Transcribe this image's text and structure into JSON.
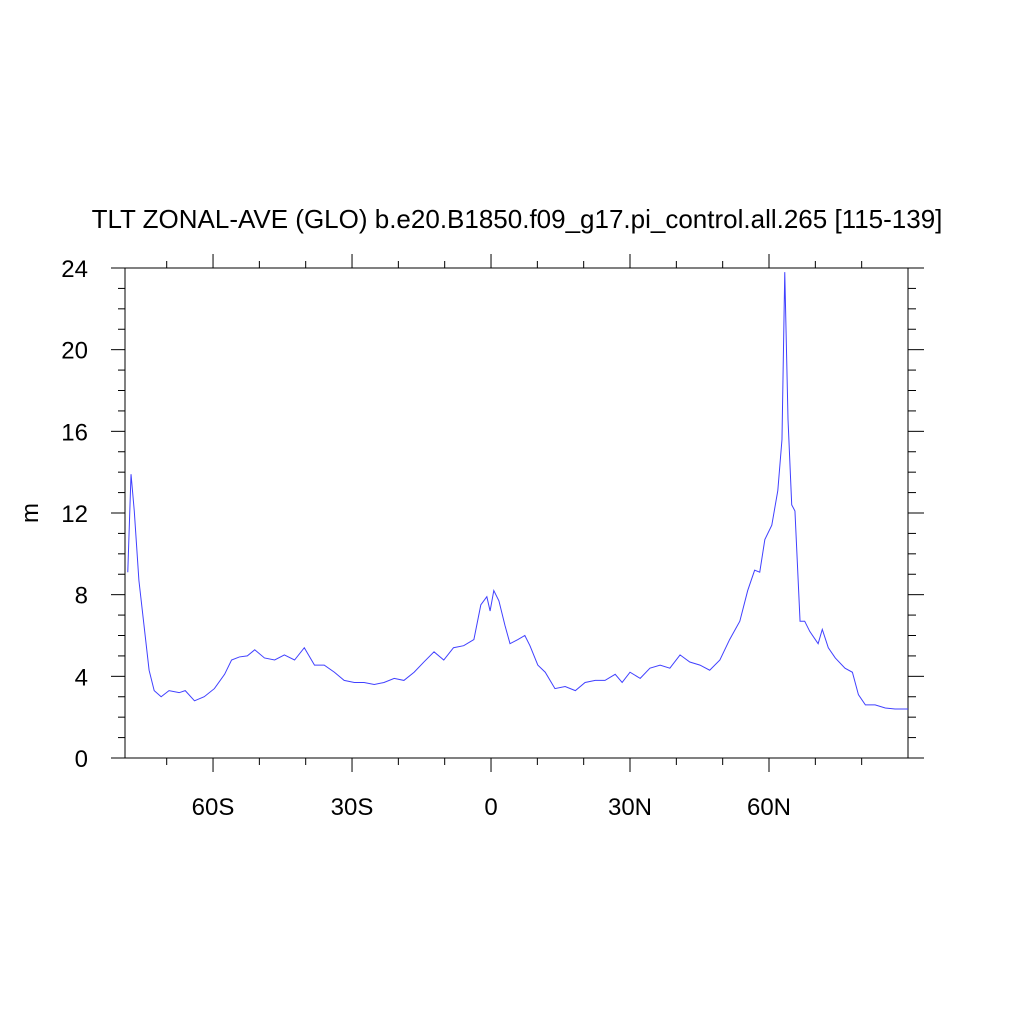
{
  "chart_data": {
    "type": "line",
    "title": "TLT ZONAL-AVE (GLO) b.e20.B1850.f09_g17.pi_control.all.265 [115-139]",
    "y_label": "m",
    "xlim": [
      -79,
      90
    ],
    "ylim": [
      0,
      24
    ],
    "xticks": [
      {
        "value": -60,
        "label": "60S"
      },
      {
        "value": -30,
        "label": "30S"
      },
      0,
      {
        "value": 30,
        "label": "30N"
      },
      {
        "value": 60,
        "label": "60N"
      }
    ],
    "xminorticks": [
      -70,
      -50,
      -40,
      -20,
      -10,
      10,
      20,
      40,
      50,
      70,
      80
    ],
    "yticks": [
      0,
      4,
      8,
      12,
      16,
      20,
      24
    ],
    "yminorticks": [
      1,
      2,
      3,
      5,
      6,
      7,
      9,
      10,
      11,
      13,
      14,
      15,
      17,
      18,
      19,
      21,
      22,
      23
    ],
    "series": [
      {
        "color": "#4040ff",
        "x": [
          -78.4,
          -77.7,
          -77,
          -76,
          -74.9,
          -73.8,
          -72.7,
          -71.2,
          -69.5,
          -67.3,
          -66,
          -64,
          -61.9,
          -59.7,
          -57.5,
          -56,
          -54.3,
          -52.6,
          -51,
          -48.9,
          -46.7,
          -44.6,
          -42.4,
          -40.3,
          -38.1,
          -36,
          -33.8,
          -31.7,
          -29.5,
          -27.4,
          -25.2,
          -23.1,
          -20.9,
          -18.8,
          -16.6,
          -14.5,
          -12.3,
          -10.2,
          -8.1,
          -5.9,
          -3.7,
          -2.2,
          -0.9,
          -0.2,
          0.6,
          1.7,
          3,
          4.1,
          5.8,
          7.3,
          8.4,
          10.1,
          11.7,
          13.8,
          16,
          18.2,
          20.3,
          22.5,
          24.6,
          26.8,
          28.3,
          30,
          32.2,
          34.3,
          36.5,
          38.6,
          40.8,
          42.9,
          45.1,
          47.2,
          49.4,
          51.5,
          53.7,
          55.4,
          56.9,
          58,
          59.1,
          60.6,
          61.9,
          62.8,
          63.4,
          64.1,
          64.9,
          65.6,
          66.7,
          67.7,
          68.8,
          70.6,
          71.5,
          72.8,
          74.3,
          76.4,
          78,
          79.3,
          80.8,
          82.9,
          85.1,
          87.2,
          90
        ],
        "values": [
          9.1,
          13.9,
          12.1,
          8.7,
          6.5,
          4.3,
          3.3,
          3,
          3.3,
          3.2,
          3.3,
          2.8,
          3,
          3.4,
          4.1,
          4.8,
          4.95,
          5,
          5.3,
          4.9,
          4.8,
          5.05,
          4.8,
          5.4,
          4.55,
          4.55,
          4.2,
          3.8,
          3.7,
          3.7,
          3.6,
          3.7,
          3.9,
          3.8,
          4.2,
          4.7,
          5.2,
          4.8,
          5.4,
          5.5,
          5.8,
          7.5,
          7.9,
          7.2,
          8.2,
          7.7,
          6.5,
          5.6,
          5.8,
          6,
          5.5,
          4.55,
          4.2,
          3.4,
          3.5,
          3.3,
          3.7,
          3.8,
          3.8,
          4.1,
          3.7,
          4.2,
          3.9,
          4.4,
          4.55,
          4.4,
          5.05,
          4.7,
          4.55,
          4.3,
          4.8,
          5.8,
          6.7,
          8.2,
          9.2,
          9.1,
          10.7,
          11.4,
          13.1,
          15.6,
          23.8,
          16.6,
          12.4,
          12.1,
          6.7,
          6.7,
          6.2,
          5.6,
          6.3,
          5.4,
          4.9,
          4.4,
          4.2,
          3.1,
          2.6,
          2.6,
          2.45,
          2.4,
          2.4
        ]
      }
    ]
  }
}
